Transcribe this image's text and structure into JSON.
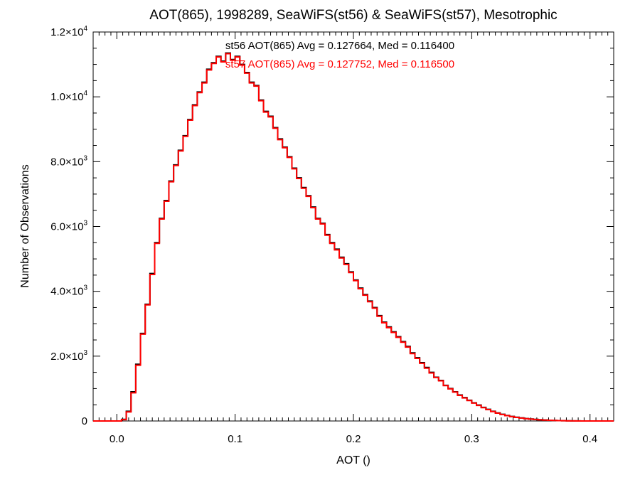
{
  "chart_data": {
    "type": "line",
    "step": true,
    "title": "AOT(865), 1998289, SeaWiFS(st56) & SeaWiFS(st57), Mesotrophic",
    "xlabel": "AOT ()",
    "ylabel": "Number of Observations",
    "xlim": [
      -0.02,
      0.42
    ],
    "ylim": [
      0,
      12000
    ],
    "x_ticks": [
      {
        "value": 0.0,
        "label": "0.0"
      },
      {
        "value": 0.1,
        "label": "0.1"
      },
      {
        "value": 0.2,
        "label": "0.2"
      },
      {
        "value": 0.3,
        "label": "0.3"
      },
      {
        "value": 0.4,
        "label": "0.4"
      }
    ],
    "y_ticks": [
      {
        "value": 0,
        "mantissa": "0",
        "exp": ""
      },
      {
        "value": 2000,
        "mantissa": "2.0×10",
        "exp": "3"
      },
      {
        "value": 4000,
        "mantissa": "4.0×10",
        "exp": "3"
      },
      {
        "value": 6000,
        "mantissa": "6.0×10",
        "exp": "3"
      },
      {
        "value": 8000,
        "mantissa": "8.0×10",
        "exp": "3"
      },
      {
        "value": 10000,
        "mantissa": "1.0×10",
        "exp": "4"
      },
      {
        "value": 12000,
        "mantissa": "1.2×10",
        "exp": "4"
      }
    ],
    "grid": false,
    "series": [
      {
        "name": "st56",
        "label": "st56 AOT(865) Avg = 0.127664, Med = 0.116400",
        "color": "#000000",
        "x": [
          -0.02,
          0.0,
          0.004,
          0.008,
          0.012,
          0.016,
          0.02,
          0.024,
          0.028,
          0.032,
          0.036,
          0.04,
          0.044,
          0.048,
          0.052,
          0.056,
          0.06,
          0.064,
          0.068,
          0.072,
          0.076,
          0.08,
          0.084,
          0.088,
          0.092,
          0.096,
          0.1,
          0.104,
          0.108,
          0.112,
          0.116,
          0.12,
          0.124,
          0.128,
          0.132,
          0.136,
          0.14,
          0.144,
          0.148,
          0.152,
          0.156,
          0.16,
          0.164,
          0.168,
          0.172,
          0.176,
          0.18,
          0.184,
          0.188,
          0.192,
          0.196,
          0.2,
          0.204,
          0.208,
          0.212,
          0.216,
          0.22,
          0.224,
          0.228,
          0.232,
          0.236,
          0.24,
          0.244,
          0.248,
          0.252,
          0.256,
          0.26,
          0.264,
          0.268,
          0.272,
          0.276,
          0.28,
          0.284,
          0.288,
          0.292,
          0.296,
          0.3,
          0.304,
          0.308,
          0.312,
          0.316,
          0.32,
          0.324,
          0.328,
          0.332,
          0.336,
          0.34,
          0.344,
          0.348,
          0.352,
          0.356,
          0.36,
          0.364,
          0.368,
          0.372,
          0.376,
          0.38,
          0.384,
          0.388,
          0.392,
          0.396,
          0.4,
          0.42
        ],
        "y": [
          0,
          0,
          50,
          300,
          900,
          1750,
          2700,
          3600,
          4550,
          5500,
          6250,
          6800,
          7400,
          7900,
          8350,
          8800,
          9300,
          9750,
          10150,
          10450,
          10850,
          11050,
          11250,
          11100,
          11350,
          11150,
          11250,
          11000,
          10750,
          10450,
          10350,
          9900,
          9550,
          9400,
          9050,
          8700,
          8450,
          8150,
          7800,
          7500,
          7200,
          6950,
          6600,
          6250,
          6100,
          5750,
          5500,
          5300,
          5050,
          4850,
          4600,
          4350,
          4100,
          3900,
          3700,
          3500,
          3250,
          3050,
          2900,
          2750,
          2600,
          2450,
          2300,
          2100,
          1950,
          1800,
          1650,
          1500,
          1350,
          1250,
          1100,
          1000,
          900,
          800,
          720,
          640,
          560,
          490,
          420,
          360,
          300,
          250,
          205,
          170,
          140,
          115,
          95,
          75,
          60,
          48,
          38,
          30,
          23,
          17,
          12,
          8,
          5,
          3,
          2,
          1,
          0,
          0,
          0
        ]
      },
      {
        "name": "st57",
        "label": "st57 AOT(865) Avg = 0.127752, Med = 0.116500",
        "color": "#ff0000",
        "x": [
          -0.02,
          0.0,
          0.004,
          0.008,
          0.012,
          0.016,
          0.02,
          0.024,
          0.028,
          0.032,
          0.036,
          0.04,
          0.044,
          0.048,
          0.052,
          0.056,
          0.06,
          0.064,
          0.068,
          0.072,
          0.076,
          0.08,
          0.084,
          0.088,
          0.092,
          0.096,
          0.1,
          0.104,
          0.108,
          0.112,
          0.116,
          0.12,
          0.124,
          0.128,
          0.132,
          0.136,
          0.14,
          0.144,
          0.148,
          0.152,
          0.156,
          0.16,
          0.164,
          0.168,
          0.172,
          0.176,
          0.18,
          0.184,
          0.188,
          0.192,
          0.196,
          0.2,
          0.204,
          0.208,
          0.212,
          0.216,
          0.22,
          0.224,
          0.228,
          0.232,
          0.236,
          0.24,
          0.244,
          0.248,
          0.252,
          0.256,
          0.26,
          0.264,
          0.268,
          0.272,
          0.276,
          0.28,
          0.284,
          0.288,
          0.292,
          0.296,
          0.3,
          0.304,
          0.308,
          0.312,
          0.316,
          0.32,
          0.324,
          0.328,
          0.332,
          0.336,
          0.34,
          0.344,
          0.348,
          0.352,
          0.356,
          0.36,
          0.364,
          0.368,
          0.372,
          0.376,
          0.38,
          0.384,
          0.388,
          0.392,
          0.396,
          0.4,
          0.42
        ],
        "y": [
          0,
          0,
          40,
          280,
          870,
          1720,
          2680,
          3580,
          4520,
          5480,
          6230,
          6780,
          7380,
          7880,
          8330,
          8780,
          9280,
          9730,
          10130,
          10430,
          10830,
          11030,
          11230,
          11080,
          11330,
          11130,
          11230,
          10980,
          10730,
          10430,
          10330,
          9880,
          9530,
          9380,
          9030,
          8680,
          8430,
          8130,
          7780,
          7480,
          7180,
          6930,
          6580,
          6230,
          6080,
          5730,
          5480,
          5280,
          5030,
          4830,
          4580,
          4330,
          4080,
          3880,
          3680,
          3480,
          3230,
          3030,
          2880,
          2730,
          2580,
          2430,
          2280,
          2080,
          1930,
          1780,
          1630,
          1480,
          1340,
          1240,
          1090,
          990,
          890,
          790,
          710,
          630,
          550,
          480,
          410,
          350,
          290,
          240,
          200,
          165,
          135,
          110,
          90,
          72,
          58,
          46,
          36,
          28,
          22,
          16,
          11,
          7,
          4,
          2,
          1,
          0,
          0,
          0,
          0
        ]
      }
    ]
  }
}
